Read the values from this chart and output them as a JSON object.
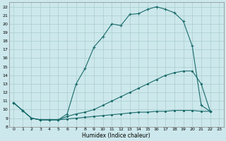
{
  "bg_color": "#cce8ec",
  "grid_color": "#aacccc",
  "line_color": "#1a6b6b",
  "xlabel": "Humidex (Indice chaleur)",
  "xlim": [
    -0.5,
    23.5
  ],
  "ylim": [
    8,
    22.5
  ],
  "xticks": [
    0,
    1,
    2,
    3,
    4,
    5,
    6,
    7,
    8,
    9,
    10,
    11,
    12,
    13,
    14,
    15,
    16,
    17,
    18,
    19,
    20,
    21,
    22,
    23
  ],
  "yticks": [
    8,
    9,
    10,
    11,
    12,
    13,
    14,
    15,
    16,
    17,
    18,
    19,
    20,
    21,
    22
  ],
  "curve1_x": [
    0,
    1,
    2,
    3,
    4,
    5,
    6,
    7,
    8,
    9,
    10,
    11,
    12,
    13,
    14,
    15,
    16,
    17,
    18,
    19,
    20,
    21,
    22
  ],
  "curve1_y": [
    10.8,
    9.9,
    9.0,
    8.8,
    8.8,
    8.8,
    9.5,
    13.0,
    14.8,
    17.3,
    18.5,
    20.0,
    19.8,
    21.1,
    21.2,
    21.7,
    22.0,
    21.7,
    21.3,
    20.3,
    17.4,
    10.5,
    9.8
  ],
  "curve2_x": [
    0,
    1,
    2,
    3,
    4,
    5,
    6,
    7,
    8,
    9,
    10,
    11,
    12,
    13,
    14,
    15,
    16,
    17,
    18,
    19,
    20,
    21,
    22
  ],
  "curve2_y": [
    10.8,
    9.9,
    9.0,
    8.8,
    8.8,
    8.8,
    9.2,
    9.5,
    9.7,
    10.0,
    10.5,
    11.0,
    11.5,
    12.0,
    12.5,
    13.0,
    13.5,
    14.0,
    14.3,
    14.5,
    14.5,
    13.0,
    9.8
  ],
  "curve3_x": [
    0,
    1,
    2,
    3,
    4,
    5,
    6,
    7,
    8,
    9,
    10,
    11,
    12,
    13,
    14,
    15,
    16,
    17,
    18,
    19,
    20,
    21,
    22
  ],
  "curve3_y": [
    10.8,
    9.9,
    9.0,
    8.8,
    8.8,
    8.8,
    8.9,
    9.0,
    9.1,
    9.2,
    9.3,
    9.4,
    9.5,
    9.6,
    9.7,
    9.7,
    9.8,
    9.8,
    9.9,
    9.9,
    9.9,
    9.8,
    9.8
  ]
}
